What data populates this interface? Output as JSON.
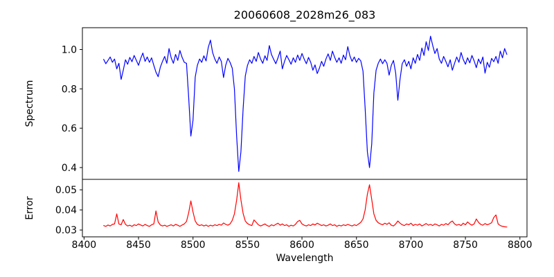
{
  "chart_data": {
    "type": "line",
    "title": "20060608_2028m26_083",
    "xlabel": "Wavelength",
    "grid": false,
    "legend": null,
    "xlim": [
      8398.5,
      8806.5
    ],
    "x_ticks": [
      8400,
      8450,
      8500,
      8550,
      8600,
      8650,
      8700,
      8750,
      8800
    ],
    "x_tick_labels": [
      "8400",
      "8450",
      "8500",
      "8550",
      "8600",
      "8650",
      "8700",
      "8750",
      "8800"
    ],
    "x_start": 8418,
    "x_step": 2,
    "subplots": [
      {
        "name": "spectrum",
        "ylabel": "Spectrum",
        "color": "#0000ff",
        "ylim": [
          0.34,
          1.111
        ],
        "y_ticks": [
          1.0,
          0.8,
          0.6,
          0.4
        ],
        "y_tick_labels": [
          "1.0",
          "0.8",
          "0.6",
          "0.4"
        ],
        "values": [
          0.95,
          0.928,
          0.945,
          0.962,
          0.935,
          0.952,
          0.902,
          0.93,
          0.848,
          0.895,
          0.948,
          0.925,
          0.96,
          0.938,
          0.97,
          0.945,
          0.92,
          0.955,
          0.982,
          0.94,
          0.962,
          0.935,
          0.958,
          0.92,
          0.885,
          0.862,
          0.91,
          0.94,
          0.965,
          0.93,
          1.005,
          0.958,
          0.93,
          0.975,
          0.945,
          0.995,
          0.96,
          0.935,
          0.93,
          0.76,
          0.56,
          0.64,
          0.86,
          0.92,
          0.952,
          0.935,
          0.968,
          0.942,
          1.01,
          1.048,
          0.985,
          0.952,
          0.93,
          0.962,
          0.94,
          0.858,
          0.92,
          0.955,
          0.935,
          0.905,
          0.8,
          0.56,
          0.38,
          0.48,
          0.7,
          0.865,
          0.92,
          0.948,
          0.93,
          0.965,
          0.94,
          0.985,
          0.952,
          0.93,
          0.968,
          0.945,
          1.02,
          0.975,
          0.95,
          0.928,
          0.958,
          0.992,
          0.902,
          0.94,
          0.97,
          0.948,
          0.925,
          0.958,
          0.935,
          0.972,
          0.945,
          0.98,
          0.952,
          0.928,
          0.96,
          0.935,
          0.895,
          0.922,
          0.878,
          0.905,
          0.94,
          0.915,
          0.952,
          0.978,
          0.945,
          0.992,
          0.96,
          0.935,
          0.958,
          0.93,
          0.972,
          0.948,
          1.015,
          0.968,
          0.94,
          0.962,
          0.935,
          0.955,
          0.942,
          0.89,
          0.7,
          0.48,
          0.4,
          0.52,
          0.78,
          0.895,
          0.93,
          0.952,
          0.928,
          0.948,
          0.93,
          0.87,
          0.92,
          0.945,
          0.88,
          0.742,
          0.85,
          0.928,
          0.948,
          0.915,
          0.94,
          0.902,
          0.958,
          0.93,
          0.975,
          0.945,
          1.008,
          0.97,
          1.04,
          0.995,
          1.068,
          1.02,
          0.98,
          1.005,
          0.952,
          0.93,
          0.965,
          0.94,
          0.912,
          0.948,
          0.895,
          0.93,
          0.962,
          0.935,
          0.985,
          0.95,
          0.925,
          0.958,
          0.932,
          0.97,
          0.942,
          0.908,
          0.952,
          0.928,
          0.962,
          0.88,
          0.935,
          0.91,
          0.955,
          0.938,
          0.965,
          0.93,
          0.992,
          0.958,
          1.005,
          0.975
        ]
      },
      {
        "name": "error",
        "ylabel": "Error",
        "color": "#ff0000",
        "ylim": [
          0.0266,
          0.0552
        ],
        "y_ticks": [
          0.05,
          0.04,
          0.03
        ],
        "y_tick_labels": [
          "0.05",
          "0.04",
          "0.03"
        ],
        "values": [
          0.0322,
          0.0318,
          0.0325,
          0.032,
          0.0328,
          0.033,
          0.038,
          0.033,
          0.0326,
          0.0352,
          0.0328,
          0.032,
          0.0324,
          0.0318,
          0.0326,
          0.0322,
          0.033,
          0.0325,
          0.032,
          0.0328,
          0.0322,
          0.0318,
          0.0326,
          0.033,
          0.0395,
          0.034,
          0.0325,
          0.032,
          0.0324,
          0.0318,
          0.0322,
          0.0326,
          0.032,
          0.0328,
          0.0324,
          0.0318,
          0.0325,
          0.033,
          0.0342,
          0.0385,
          0.0445,
          0.039,
          0.0345,
          0.0328,
          0.0322,
          0.0326,
          0.032,
          0.0325,
          0.0318,
          0.0324,
          0.032,
          0.0326,
          0.0322,
          0.0328,
          0.0324,
          0.0335,
          0.0328,
          0.0324,
          0.033,
          0.0348,
          0.038,
          0.0448,
          0.0535,
          0.045,
          0.0382,
          0.0345,
          0.0332,
          0.0326,
          0.0322,
          0.035,
          0.0338,
          0.0326,
          0.032,
          0.0325,
          0.033,
          0.0322,
          0.0318,
          0.0326,
          0.0321,
          0.0328,
          0.0334,
          0.0324,
          0.033,
          0.0322,
          0.0326,
          0.0318,
          0.0324,
          0.032,
          0.0328,
          0.0342,
          0.0348,
          0.033,
          0.0324,
          0.032,
          0.0326,
          0.0322,
          0.033,
          0.0325,
          0.0334,
          0.0328,
          0.0322,
          0.0326,
          0.032,
          0.0324,
          0.033,
          0.0322,
          0.0326,
          0.0318,
          0.0324,
          0.032,
          0.0326,
          0.0322,
          0.0328,
          0.0324,
          0.032,
          0.0326,
          0.0322,
          0.033,
          0.0338,
          0.0355,
          0.04,
          0.0478,
          0.0525,
          0.0452,
          0.038,
          0.0348,
          0.0336,
          0.033,
          0.0326,
          0.0334,
          0.0328,
          0.0336,
          0.0324,
          0.032,
          0.033,
          0.0345,
          0.0334,
          0.0326,
          0.0322,
          0.033,
          0.0326,
          0.0334,
          0.0322,
          0.0328,
          0.0324,
          0.033,
          0.032,
          0.0326,
          0.0332,
          0.0324,
          0.0328,
          0.0322,
          0.033,
          0.0326,
          0.032,
          0.0328,
          0.0324,
          0.0332,
          0.0326,
          0.0338,
          0.0345,
          0.033,
          0.0324,
          0.0328,
          0.0322,
          0.0334,
          0.0326,
          0.034,
          0.033,
          0.0324,
          0.033,
          0.0355,
          0.0338,
          0.0328,
          0.0324,
          0.0332,
          0.0326,
          0.033,
          0.0336,
          0.0362,
          0.0375,
          0.033,
          0.0322,
          0.0318,
          0.0316,
          0.0315
        ]
      }
    ]
  }
}
